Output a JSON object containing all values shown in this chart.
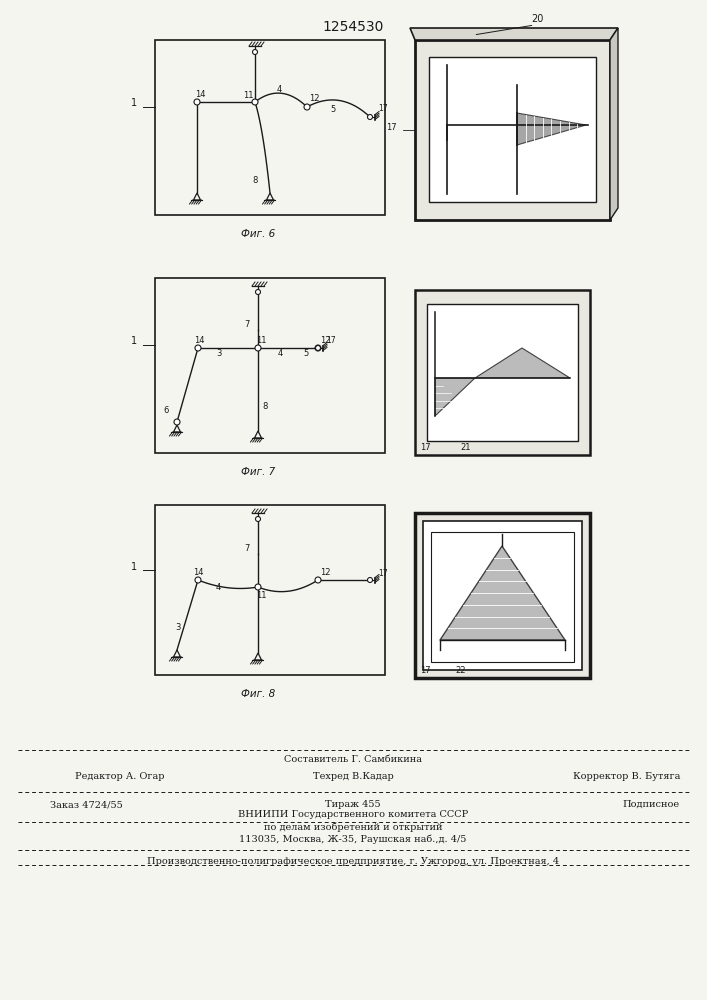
{
  "title_number": "1254530",
  "fig6_caption": "Фиг. 6",
  "fig7_caption": "Фиг. 7",
  "fig8_caption": "Фиг. 8",
  "footer_composer": "Составитель Г. Самбикина",
  "footer_editor": "Редактор А. Огар",
  "footer_techred": "Техред В.Кадар",
  "footer_corrector": "Корректор В. Бутяга",
  "footer_order": "Заказ 4724/55",
  "footer_tirazh": "Тираж 455",
  "footer_podpisnoe": "Подписное",
  "footer_vniiipi": "ВНИИПИ Государственного комитета СССР",
  "footer_po_delam": "по делам изобретений и открытий",
  "footer_address": "113035, Москва, Ж-35, Раушская наб.,д. 4/5",
  "footer_production": "Производственно-полиграфическое предприятие, г. Ужгород, ул. Проектная, 4",
  "bg_color": "#f5f5f0",
  "line_color": "#1a1a1a"
}
